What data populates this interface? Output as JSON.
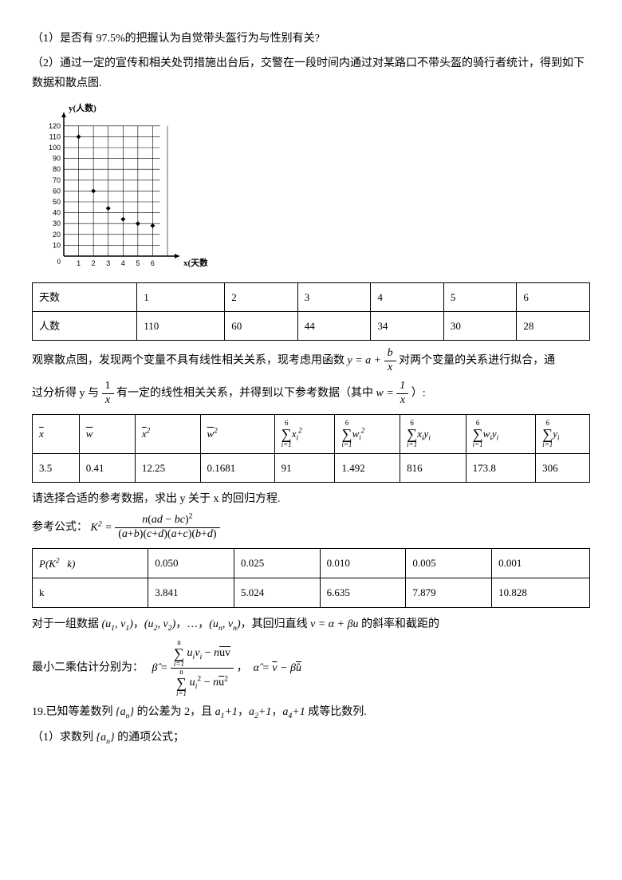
{
  "q1": "（1）是否有 97.5%的把握认为自觉带头盔行为与性别有关?",
  "q2": "（2）通过一定的宣传和相关处罚措施出台后，交警在一段时间内通过对某路口不带头盔的骑行者统计，得到如下数据和散点图.",
  "chart": {
    "ylabel": "y(人数)",
    "xlabel": "x(天数)",
    "yticks": [
      0,
      10,
      20,
      30,
      40,
      50,
      60,
      70,
      80,
      90,
      100,
      110,
      120
    ],
    "xticks": [
      1,
      2,
      3,
      4,
      5,
      6
    ],
    "points": [
      [
        1,
        110
      ],
      [
        2,
        60
      ],
      [
        3,
        44
      ],
      [
        4,
        34
      ],
      [
        5,
        30
      ],
      [
        6,
        28
      ]
    ],
    "axis_color": "#000000",
    "grid_color": "#000000",
    "point_color": "#000000"
  },
  "table1": {
    "row1_label": "天数",
    "row1": [
      "1",
      "2",
      "3",
      "4",
      "5",
      "6"
    ],
    "row2_label": "人数",
    "row2": [
      "110",
      "60",
      "44",
      "34",
      "30",
      "28"
    ]
  },
  "obs_text_1": "观察散点图，发现两个变量不具有线性相关关系，现考虑用函数 ",
  "obs_formula": "y = a + b/x",
  "obs_text_2": " 对两个变量的关系进行拟合，通",
  "obs_text_3": "过分析得 y 与 ",
  "obs_frac": "1/x",
  "obs_text_4": " 有一定的线性相关关系，并得到以下参考数据（其中 ",
  "obs_w": "w = 1/x",
  "obs_text_5": " ）:",
  "table2": {
    "headers": [
      "x̄",
      "w̄",
      "x̄²",
      "w̄²",
      "Σxᵢ²",
      "Σwᵢ²",
      "Σxᵢyᵢ",
      "Σwᵢyᵢ",
      "Σyᵢ"
    ],
    "values": [
      "3.5",
      "0.41",
      "12.25",
      "0.1681",
      "91",
      "1.492",
      "816",
      "173.8",
      "306"
    ]
  },
  "select_text": "请选择合适的参考数据，求出 y 关于 x 的回归方程.",
  "ref_formula_label": "参考公式：",
  "k2_formula": "K² = n(ad−bc)² / (a+b)(c+d)(a+c)(b+d)",
  "table3": {
    "row1_label": "P(K² ≥ k)",
    "row1": [
      "0.050",
      "0.025",
      "0.010",
      "0.005",
      "0.001"
    ],
    "row2_label": "k",
    "row2": [
      "3.841",
      "5.024",
      "6.635",
      "7.879",
      "10.828"
    ]
  },
  "regr_text": "对于一组数据 (u₁,v₁)，(u₂,v₂)，…，(uₙ,vₙ)，其回归直线 v = α + βu 的斜率和截距的",
  "lsq_text": "最小二乘估计分别为：",
  "beta_formula": "β̂ = (Σuᵢvᵢ − nūv̄) / (Σuᵢ² − nū²)",
  "alpha_formula": "α̂ = v̄ − β̂ū",
  "q19": "19.已知等差数列 {aₙ} 的公差为 2，且 a₁+1，a₂+1，a₄+1 成等比数列.",
  "q19_1": "（1）求数列 {aₙ} 的通项公式；"
}
